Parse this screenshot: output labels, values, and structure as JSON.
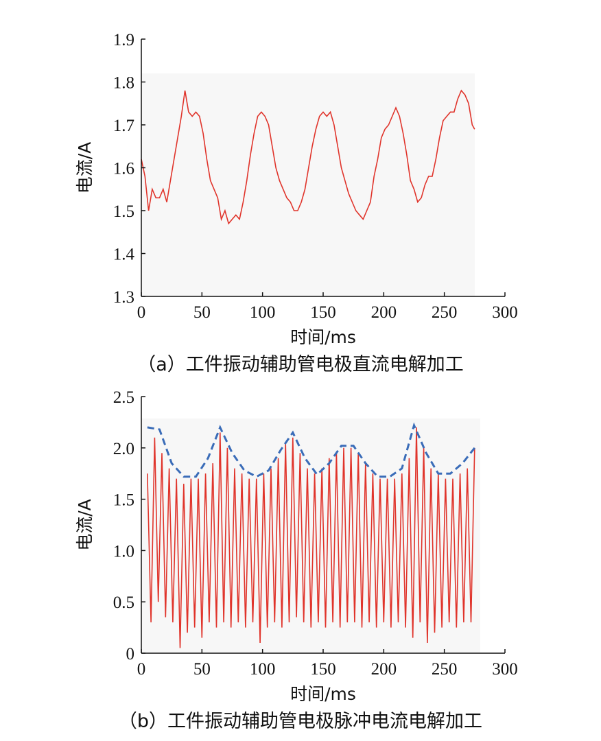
{
  "chart_data": [
    {
      "type": "line",
      "caption": "（a）工件振动辅助管电极直流电解加工",
      "xlabel": "时间/ms",
      "ylabel": "电流/A",
      "xlim": [
        0,
        300
      ],
      "ylim": [
        1.3,
        1.9
      ],
      "x_ticks": [
        "0",
        "50",
        "100",
        "150",
        "200",
        "250",
        "300"
      ],
      "y_ticks": [
        "1.3",
        "1.4",
        "1.5",
        "1.6",
        "1.7",
        "1.8",
        "1.9"
      ],
      "grid": false,
      "colors": {
        "series": "#e0342b",
        "plot_bg": "#f7f7f7"
      },
      "series": [
        {
          "x": [
            0,
            3,
            6,
            9,
            12,
            15,
            18,
            21,
            24,
            27,
            30,
            33,
            36,
            39,
            42,
            45,
            48,
            51,
            54,
            57,
            60,
            63,
            66,
            69,
            72,
            75,
            78,
            81,
            84,
            87,
            90,
            93,
            96,
            99,
            102,
            105,
            108,
            111,
            114,
            117,
            120,
            123,
            126,
            129,
            132,
            135,
            138,
            141,
            144,
            147,
            150,
            153,
            156,
            159,
            162,
            165,
            168,
            171,
            174,
            177,
            180,
            183,
            186,
            189,
            192,
            195,
            198,
            201,
            204,
            207,
            210,
            213,
            216,
            219,
            222,
            225,
            228,
            231,
            234,
            237,
            240,
            243,
            246,
            249,
            252,
            255,
            258,
            261,
            264,
            267,
            270,
            273,
            275
          ],
          "values": [
            1.62,
            1.58,
            1.5,
            1.55,
            1.53,
            1.53,
            1.55,
            1.52,
            1.57,
            1.62,
            1.67,
            1.72,
            1.78,
            1.73,
            1.72,
            1.73,
            1.72,
            1.68,
            1.62,
            1.57,
            1.55,
            1.53,
            1.48,
            1.5,
            1.47,
            1.48,
            1.49,
            1.48,
            1.52,
            1.57,
            1.63,
            1.68,
            1.72,
            1.73,
            1.72,
            1.7,
            1.65,
            1.6,
            1.57,
            1.55,
            1.53,
            1.52,
            1.5,
            1.5,
            1.52,
            1.55,
            1.6,
            1.65,
            1.69,
            1.72,
            1.73,
            1.72,
            1.73,
            1.7,
            1.65,
            1.6,
            1.57,
            1.54,
            1.52,
            1.5,
            1.49,
            1.48,
            1.5,
            1.52,
            1.58,
            1.62,
            1.67,
            1.69,
            1.7,
            1.72,
            1.74,
            1.72,
            1.68,
            1.63,
            1.57,
            1.55,
            1.52,
            1.53,
            1.56,
            1.58,
            1.58,
            1.62,
            1.67,
            1.71,
            1.72,
            1.73,
            1.73,
            1.76,
            1.78,
            1.77,
            1.75,
            1.7,
            1.69
          ]
        }
      ]
    },
    {
      "type": "line",
      "caption": "（b）工件振动辅助管电极脉冲电流电解加工",
      "xlabel": "时间/ms",
      "ylabel": "电流/A",
      "xlim": [
        0,
        300
      ],
      "ylim": [
        0,
        2.5
      ],
      "x_ticks": [
        "0",
        "50",
        "100",
        "150",
        "200",
        "250",
        "300"
      ],
      "y_ticks": [
        "0",
        "0.5",
        "1.0",
        "1.5",
        "2.0",
        "2.5"
      ],
      "grid": false,
      "colors": {
        "series": "#e0342b",
        "envelope": "#3a6cb8",
        "plot_bg": "#f7f7f7"
      },
      "series": [
        {
          "x": [
            5,
            8,
            11,
            14,
            17,
            20,
            23,
            26,
            29,
            32,
            35,
            38,
            41,
            44,
            47,
            50,
            53,
            56,
            59,
            62,
            65,
            68,
            71,
            74,
            77,
            80,
            83,
            86,
            89,
            92,
            95,
            98,
            101,
            104,
            107,
            110,
            113,
            116,
            119,
            122,
            125,
            128,
            131,
            134,
            137,
            140,
            143,
            146,
            149,
            152,
            155,
            158,
            161,
            164,
            167,
            170,
            173,
            176,
            179,
            182,
            185,
            188,
            191,
            194,
            197,
            200,
            203,
            206,
            209,
            212,
            215,
            218,
            221,
            224,
            227,
            230,
            233,
            236,
            239,
            242,
            245,
            248,
            251,
            254,
            257,
            260,
            263,
            266,
            269,
            272,
            275
          ],
          "values": [
            1.75,
            0.3,
            2.1,
            0.5,
            1.95,
            0.35,
            1.8,
            0.3,
            1.7,
            0.05,
            1.65,
            0.2,
            1.7,
            0.25,
            1.7,
            0.15,
            1.75,
            0.3,
            1.85,
            0.25,
            2.15,
            0.3,
            2.0,
            0.25,
            1.8,
            0.3,
            1.75,
            0.25,
            1.7,
            0.3,
            1.7,
            0.1,
            1.75,
            0.25,
            1.8,
            0.3,
            1.9,
            0.25,
            2.05,
            0.3,
            2.1,
            0.35,
            1.95,
            0.3,
            1.8,
            0.25,
            1.75,
            0.3,
            1.8,
            0.25,
            1.9,
            0.3,
            1.95,
            0.25,
            2.0,
            0.3,
            2.0,
            0.3,
            1.95,
            0.25,
            1.85,
            0.3,
            1.75,
            0.25,
            1.7,
            0.3,
            1.7,
            0.25,
            1.7,
            0.3,
            1.75,
            0.25,
            1.9,
            0.15,
            2.2,
            0.3,
            2.0,
            0.1,
            1.8,
            0.2,
            1.75,
            0.25,
            1.7,
            0.3,
            1.7,
            0.25,
            1.75,
            0.3,
            1.8,
            0.3,
            2.0
          ]
        },
        {
          "style": "dashed-envelope",
          "x": [
            5,
            15,
            25,
            35,
            45,
            55,
            65,
            75,
            85,
            95,
            105,
            115,
            125,
            135,
            145,
            155,
            165,
            175,
            185,
            195,
            205,
            215,
            225,
            235,
            245,
            255,
            265,
            275
          ],
          "values": [
            2.2,
            2.18,
            1.85,
            1.72,
            1.72,
            1.9,
            2.2,
            1.95,
            1.78,
            1.72,
            1.78,
            1.98,
            2.15,
            1.9,
            1.74,
            1.85,
            2.02,
            2.02,
            1.85,
            1.72,
            1.72,
            1.8,
            2.22,
            1.95,
            1.75,
            1.75,
            1.85,
            2.0
          ]
        }
      ]
    }
  ]
}
